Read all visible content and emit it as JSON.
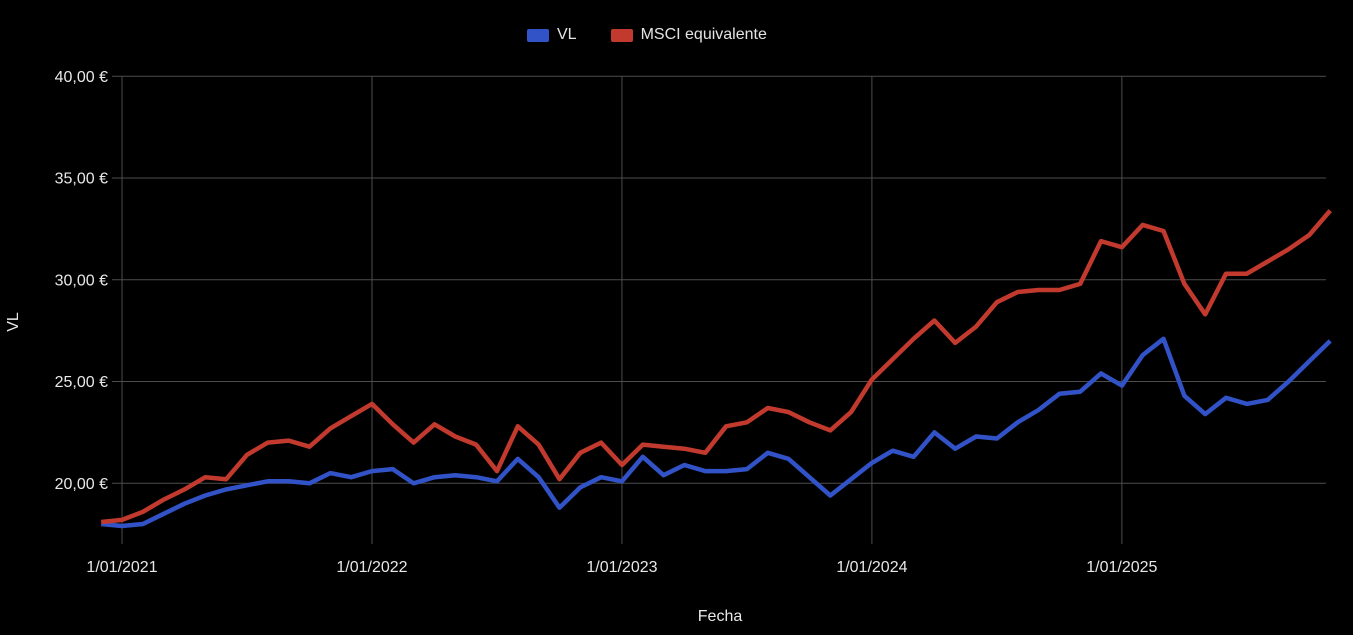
{
  "page": {
    "background": "#000000"
  },
  "chart_data": {
    "type": "line",
    "title": "",
    "xlabel": "Fecha",
    "ylabel": "VL",
    "grid": true,
    "legend_position": "top",
    "background": "#000000",
    "gridline_color": "#4D4D4D",
    "text_color": "#E8E8E8",
    "ylim": [
      17.3,
      40
    ],
    "x": [
      "1/12/2020",
      "1/01/2021",
      "1/02/2021",
      "1/03/2021",
      "1/04/2021",
      "1/05/2021",
      "1/06/2021",
      "1/07/2021",
      "1/08/2021",
      "1/09/2021",
      "1/10/2021",
      "1/11/2021",
      "1/12/2021",
      "1/01/2022",
      "1/02/2022",
      "1/03/2022",
      "1/04/2022",
      "1/05/2022",
      "1/06/2022",
      "1/07/2022",
      "1/08/2022",
      "1/09/2022",
      "1/10/2022",
      "1/11/2022",
      "1/12/2022",
      "1/01/2023",
      "1/02/2023",
      "1/03/2023",
      "1/04/2023",
      "1/05/2023",
      "1/06/2023",
      "1/07/2023",
      "1/08/2023",
      "1/09/2023",
      "1/10/2023",
      "1/11/2023",
      "1/12/2023",
      "1/01/2024",
      "1/02/2024",
      "1/03/2024",
      "1/04/2024",
      "1/05/2024",
      "1/06/2024",
      "1/07/2024",
      "1/08/2024",
      "1/09/2024",
      "1/10/2024",
      "1/11/2024",
      "1/12/2024",
      "1/01/2025",
      "1/02/2025",
      "1/03/2025",
      "1/04/2025",
      "1/05/2025",
      "1/06/2025",
      "1/07/2025",
      "1/08/2025",
      "1/09/2025",
      "1/10/2025",
      "1/11/2025"
    ],
    "series": [
      {
        "name": "VL",
        "color": "#3153C7",
        "values": [
          18.0,
          17.9,
          18.0,
          18.5,
          19.0,
          19.4,
          19.7,
          19.9,
          20.1,
          20.1,
          20.0,
          20.5,
          20.3,
          20.6,
          20.7,
          20.0,
          20.3,
          20.4,
          20.3,
          20.1,
          21.2,
          20.3,
          18.8,
          19.8,
          20.3,
          20.1,
          21.3,
          20.4,
          20.9,
          20.6,
          20.6,
          20.7,
          21.5,
          21.2,
          20.3,
          19.4,
          20.2,
          21.0,
          21.6,
          21.3,
          22.5,
          21.7,
          22.3,
          22.2,
          23.0,
          23.6,
          24.4,
          24.5,
          25.4,
          24.8,
          26.3,
          27.1,
          24.3,
          23.4,
          24.2,
          23.9,
          24.1,
          25.0,
          26.0,
          27.0
        ]
      },
      {
        "name": "MSCI equivalente",
        "color": "#C23A2E",
        "values": [
          18.1,
          18.2,
          18.6,
          19.2,
          19.7,
          20.3,
          20.2,
          21.4,
          22.0,
          22.1,
          21.8,
          22.7,
          23.3,
          23.9,
          22.9,
          22.0,
          22.9,
          22.3,
          21.9,
          20.6,
          22.8,
          21.9,
          20.2,
          21.5,
          22.0,
          20.9,
          21.9,
          21.8,
          21.7,
          21.5,
          22.8,
          23.0,
          23.7,
          23.5,
          23.0,
          22.6,
          23.5,
          25.1,
          26.1,
          27.1,
          28.0,
          26.9,
          27.7,
          28.9,
          29.4,
          29.5,
          29.5,
          29.8,
          31.9,
          31.6,
          32.7,
          32.4,
          29.8,
          28.3,
          30.3,
          30.3,
          30.9,
          31.5,
          32.2,
          33.4
        ]
      }
    ],
    "x_ticks": [
      {
        "label": "1/01/2021",
        "month_index": 1
      },
      {
        "label": "1/01/2022",
        "month_index": 13
      },
      {
        "label": "1/01/2023",
        "month_index": 25
      },
      {
        "label": "1/01/2024",
        "month_index": 37
      },
      {
        "label": "1/01/2025",
        "month_index": 49
      }
    ],
    "y_ticks": [
      {
        "label": "20,00 €",
        "value": 20
      },
      {
        "label": "25,00 €",
        "value": 25
      },
      {
        "label": "30,00 €",
        "value": 30
      },
      {
        "label": "35,00 €",
        "value": 35
      },
      {
        "label": "40,00 €",
        "value": 40
      }
    ]
  }
}
